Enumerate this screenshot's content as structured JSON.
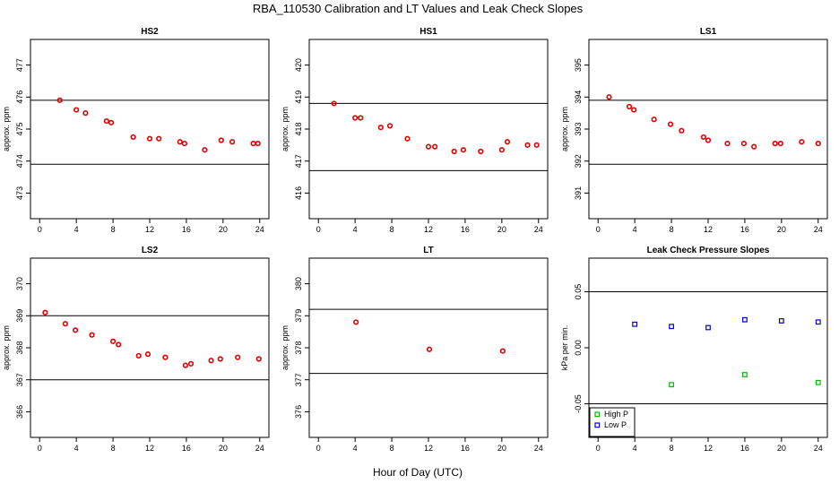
{
  "figure": {
    "title": "RBA_110530  Calibration and LT Values and Leak Check Slopes",
    "xlabel": "Hour of Day (UTC)"
  },
  "colors": {
    "cal_marker": "#e00000",
    "high_p": "#00bb00",
    "low_p": "#0000dd",
    "ref_line": "#000000"
  },
  "chart_data": [
    {
      "type": "scatter",
      "title": "HS2",
      "xlabel": "",
      "ylabel": "approx. ppm",
      "xlim": [
        -1,
        25
      ],
      "ylim": [
        472.2,
        477.8
      ],
      "xticks": [
        0,
        4,
        8,
        12,
        16,
        20,
        24
      ],
      "yticks": [
        473,
        474,
        475,
        476,
        477
      ],
      "hlines": [
        475.9,
        473.9
      ],
      "series": [
        {
          "name": "",
          "marker": "circle",
          "color": "#e00000",
          "x": [
            2.2,
            4.0,
            5.0,
            7.3,
            7.8,
            10.2,
            12.0,
            13.0,
            15.3,
            15.8,
            18.0,
            19.8,
            21.0,
            23.3,
            23.8
          ],
          "y": [
            475.9,
            475.6,
            475.5,
            475.25,
            475.2,
            474.75,
            474.7,
            474.7,
            474.6,
            474.55,
            474.35,
            474.65,
            474.6,
            474.55,
            474.55
          ]
        }
      ]
    },
    {
      "type": "scatter",
      "title": "HS1",
      "xlabel": "",
      "ylabel": "approx. ppm",
      "xlim": [
        -1,
        25
      ],
      "ylim": [
        415.2,
        420.8
      ],
      "xticks": [
        0,
        4,
        8,
        12,
        16,
        20,
        24
      ],
      "yticks": [
        416,
        417,
        418,
        419,
        420
      ],
      "hlines": [
        418.8,
        416.7
      ],
      "series": [
        {
          "name": "",
          "marker": "circle",
          "color": "#e00000",
          "x": [
            1.7,
            4.0,
            4.6,
            6.8,
            7.8,
            9.7,
            12.0,
            12.7,
            14.8,
            15.8,
            17.7,
            20.0,
            20.6,
            22.8,
            23.8
          ],
          "y": [
            418.8,
            418.35,
            418.35,
            418.05,
            418.1,
            417.7,
            417.45,
            417.45,
            417.3,
            417.35,
            417.3,
            417.35,
            417.6,
            417.5,
            417.5
          ]
        }
      ]
    },
    {
      "type": "scatter",
      "title": "LS1",
      "xlabel": "",
      "ylabel": "approx. ppm",
      "xlim": [
        -1,
        25
      ],
      "ylim": [
        390.2,
        395.8
      ],
      "xticks": [
        0,
        4,
        8,
        12,
        16,
        20,
        24
      ],
      "yticks": [
        391,
        392,
        393,
        394,
        395
      ],
      "hlines": [
        393.9,
        391.9
      ],
      "series": [
        {
          "name": "",
          "marker": "circle",
          "color": "#e00000",
          "x": [
            1.2,
            3.4,
            3.9,
            6.1,
            7.9,
            9.1,
            11.5,
            12.0,
            14.1,
            15.9,
            17.0,
            19.3,
            19.9,
            22.2,
            24.0
          ],
          "y": [
            394.0,
            393.7,
            393.6,
            393.3,
            393.15,
            392.95,
            392.75,
            392.65,
            392.55,
            392.55,
            392.45,
            392.55,
            392.55,
            392.6,
            392.55
          ]
        }
      ]
    },
    {
      "type": "scatter",
      "title": "LS2",
      "xlabel": "",
      "ylabel": "approx. ppm",
      "xlim": [
        -1,
        25
      ],
      "ylim": [
        365.2,
        370.8
      ],
      "xticks": [
        0,
        4,
        8,
        12,
        16,
        20,
        24
      ],
      "yticks": [
        366,
        367,
        368,
        369,
        370
      ],
      "hlines": [
        369.0,
        367.0
      ],
      "series": [
        {
          "name": "",
          "marker": "circle",
          "color": "#e00000",
          "x": [
            0.6,
            2.8,
            3.9,
            5.7,
            8.0,
            8.6,
            10.8,
            11.8,
            13.7,
            15.9,
            16.5,
            18.7,
            19.7,
            21.6,
            23.9
          ],
          "y": [
            369.1,
            368.75,
            368.55,
            368.4,
            368.2,
            368.1,
            367.75,
            367.8,
            367.7,
            367.45,
            367.5,
            367.6,
            367.65,
            367.7,
            367.65
          ]
        }
      ]
    },
    {
      "type": "scatter",
      "title": "LT",
      "xlabel": "",
      "ylabel": "approx. ppm",
      "xlim": [
        -1,
        25
      ],
      "ylim": [
        375.2,
        380.8
      ],
      "xticks": [
        0,
        4,
        8,
        12,
        16,
        20,
        24
      ],
      "yticks": [
        376,
        377,
        378,
        379,
        380
      ],
      "hlines": [
        379.2,
        377.2
      ],
      "series": [
        {
          "name": "",
          "marker": "circle",
          "color": "#e00000",
          "x": [
            4.1,
            12.1,
            20.1
          ],
          "y": [
            378.8,
            377.95,
            377.9
          ]
        }
      ]
    },
    {
      "type": "scatter",
      "title": "Leak Check Pressure Slopes",
      "xlabel": "",
      "ylabel": "kPa per min.",
      "xlim": [
        -1,
        25
      ],
      "ylim": [
        -0.08,
        0.08
      ],
      "xticks": [
        0,
        4,
        8,
        12,
        16,
        20,
        24
      ],
      "yticks": [
        -0.05,
        0.0,
        0.05
      ],
      "yticklabels": [
        "-0.05",
        "0.00",
        "0.05"
      ],
      "hlines": [
        0.05,
        -0.05
      ],
      "legend": "bottom-left",
      "series": [
        {
          "name": "High P",
          "marker": "square",
          "color": "#00bb00",
          "x": [
            8,
            16,
            24
          ],
          "y": [
            -0.033,
            -0.024,
            -0.031
          ]
        },
        {
          "name": "Low P",
          "marker": "square",
          "color": "#0000dd",
          "x": [
            4,
            8,
            12,
            16,
            20,
            24
          ],
          "y": [
            0.021,
            0.019,
            0.018,
            0.025,
            0.024,
            0.023
          ]
        }
      ]
    }
  ]
}
